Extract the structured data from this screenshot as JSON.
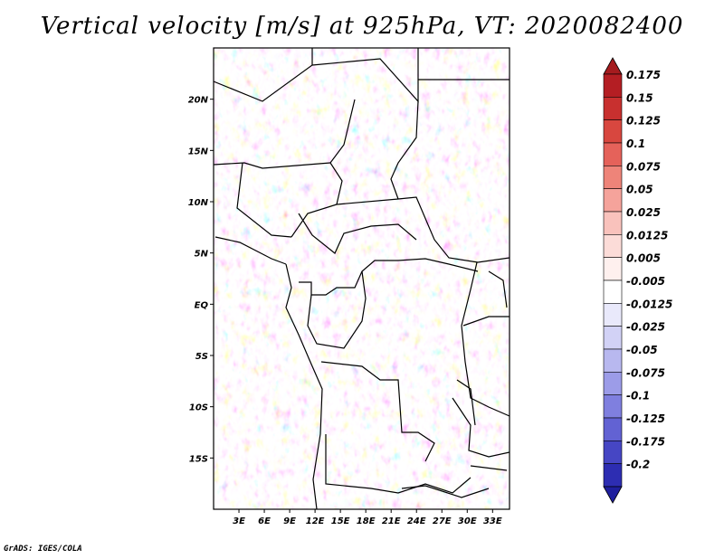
{
  "title": "Vertical velocity [m/s] at 925hPa, VT: 2020082400",
  "credit": "GrADS: IGES/COLA",
  "map": {
    "lon_range": [
      0,
      35
    ],
    "lat_range": [
      -20,
      25
    ],
    "lat_ticks": [
      {
        "value": 20,
        "label": "20N"
      },
      {
        "value": 15,
        "label": "15N"
      },
      {
        "value": 10,
        "label": "10N"
      },
      {
        "value": 5,
        "label": "5N"
      },
      {
        "value": 0,
        "label": "EQ"
      },
      {
        "value": -5,
        "label": "5S"
      },
      {
        "value": -10,
        "label": "10S"
      },
      {
        "value": -15,
        "label": "15S"
      }
    ],
    "lon_ticks": [
      {
        "value": 3,
        "label": "3E"
      },
      {
        "value": 6,
        "label": "6E"
      },
      {
        "value": 9,
        "label": "9E"
      },
      {
        "value": 12,
        "label": "12E"
      },
      {
        "value": 15,
        "label": "15E"
      },
      {
        "value": 18,
        "label": "18E"
      },
      {
        "value": 21,
        "label": "21E"
      },
      {
        "value": 24,
        "label": "24E"
      },
      {
        "value": 27,
        "label": "27E"
      },
      {
        "value": 30,
        "label": "30E"
      },
      {
        "value": 33,
        "label": "33E"
      }
    ]
  },
  "colorbar": {
    "levels": [
      {
        "label": "0.175",
        "color": "#b41e23"
      },
      {
        "label": "0.15",
        "color": "#c8302f"
      },
      {
        "label": "0.125",
        "color": "#d8473f"
      },
      {
        "label": "0.1",
        "color": "#e5625a"
      },
      {
        "label": "0.075",
        "color": "#ee8479"
      },
      {
        "label": "0.05",
        "color": "#f5a39b"
      },
      {
        "label": "0.025",
        "color": "#f9c2bc"
      },
      {
        "label": "0.0125",
        "color": "#fcdcd8"
      },
      {
        "label": "0.005",
        "color": "#fef0ee"
      },
      {
        "label": "-0.005",
        "color": "#ffffff"
      },
      {
        "label": "-0.0125",
        "color": "#e9e9fb"
      },
      {
        "label": "-0.025",
        "color": "#d2d2f6"
      },
      {
        "label": "-0.05",
        "color": "#b8b8ef"
      },
      {
        "label": "-0.075",
        "color": "#9c9ce8"
      },
      {
        "label": "-0.1",
        "color": "#7f7fdf"
      },
      {
        "label": "-0.125",
        "color": "#6262d3"
      },
      {
        "label": "-0.175",
        "color": "#4646c4"
      },
      {
        "label": "-0.2",
        "color": "#2d2db2"
      }
    ],
    "top_color": "#a51b1e",
    "bottom_color": "#1f1f9e"
  }
}
